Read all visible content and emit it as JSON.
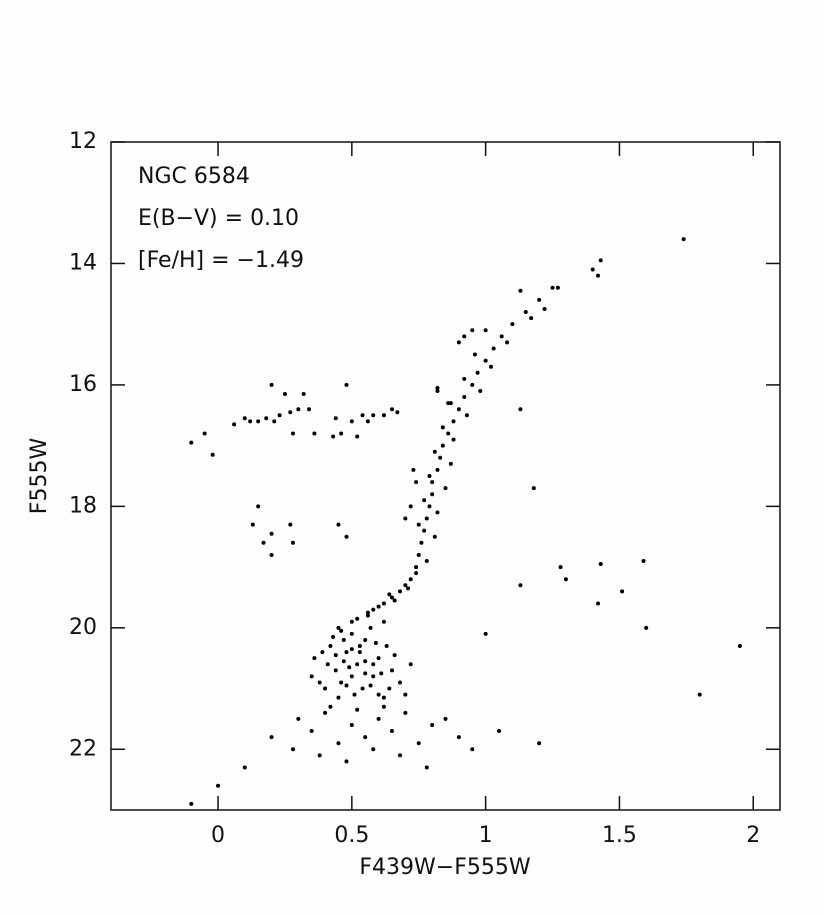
{
  "chart_data": {
    "type": "scatter",
    "x_label": "F439W−F555W",
    "y_label": "F555W",
    "annotations": [
      "NGC 6584",
      "E(B−V) = 0.10",
      "[Fe/H] = −1.49"
    ],
    "xlim": [
      -0.4,
      2.1
    ],
    "ylim": [
      12,
      23
    ],
    "y_inverted": true,
    "xticks": [
      0,
      0.5,
      1,
      1.5,
      2
    ],
    "yticks": [
      12,
      14,
      16,
      18,
      20,
      22
    ],
    "color": "#000000",
    "x": [
      -0.1,
      -0.05,
      -0.02,
      0.06,
      0.1,
      0.12,
      0.15,
      0.18,
      0.2,
      0.21,
      0.23,
      0.25,
      0.27,
      0.28,
      0.3,
      0.32,
      0.34,
      0.36,
      0.44,
      0.46,
      0.48,
      0.5,
      0.52,
      0.54,
      0.56,
      0.58,
      0.62,
      0.65,
      0.67,
      0.43,
      0.15,
      0.13,
      0.17,
      0.2,
      0.27,
      0.28,
      0.45,
      0.48,
      0.2,
      1.13,
      1.28,
      1.3,
      1.43,
      1.59,
      1.51,
      1.42,
      1.18,
      1.0,
      1.13,
      0.45,
      0.5,
      0.55,
      0.48,
      0.52,
      0.58,
      0.46,
      0.6,
      0.42,
      0.5,
      0.56,
      0.62,
      0.44,
      0.54,
      0.6,
      0.5,
      0.47,
      0.53,
      0.57,
      0.41,
      0.65,
      0.63,
      0.38,
      0.36,
      0.4,
      0.68,
      0.7,
      0.51,
      0.45,
      0.55,
      0.49,
      0.59,
      0.43,
      0.61,
      0.66,
      0.39,
      0.52,
      0.57,
      0.47,
      0.64,
      0.35,
      0.72,
      0.53,
      0.48,
      0.44,
      0.58,
      0.62,
      0.5,
      0.46,
      0.55,
      0.58,
      0.62,
      0.65,
      0.68,
      0.7,
      0.72,
      0.74,
      0.6,
      0.66,
      0.71,
      0.56,
      0.64,
      0.74,
      0.75,
      0.76,
      0.77,
      0.78,
      0.79,
      0.8,
      0.8,
      0.82,
      0.83,
      0.84,
      0.86,
      0.88,
      0.9,
      0.92,
      0.95,
      0.97,
      1.0,
      1.03,
      1.06,
      1.1,
      1.15,
      1.2,
      1.25,
      1.4,
      1.42,
      1.43,
      1.74,
      0.78,
      0.81,
      0.75,
      0.82,
      0.77,
      0.85,
      0.79,
      0.87,
      0.81,
      0.88,
      0.84,
      0.93,
      0.87,
      0.98,
      0.92,
      1.02,
      0.96,
      1.08,
      1.0,
      1.17,
      1.22,
      1.13,
      1.27,
      0.9,
      0.92,
      0.95,
      0.82,
      0.82,
      0.86,
      0.73,
      0.7,
      0.72,
      0.74,
      0.3,
      0.35,
      0.4,
      0.45,
      0.5,
      0.55,
      0.6,
      0.65,
      0.7,
      0.75,
      0.8,
      0.85,
      0.9,
      0.28,
      0.38,
      0.48,
      0.58,
      0.68,
      0.78,
      0.95,
      0.2,
      0.1,
      0.0,
      -0.1,
      1.05,
      1.2,
      1.6,
      1.8,
      1.95,
      0.42,
      0.62,
      0.52
    ],
    "values": [
      16.95,
      16.8,
      17.15,
      16.65,
      16.55,
      16.6,
      16.6,
      16.55,
      16.0,
      16.6,
      16.5,
      16.15,
      16.45,
      16.8,
      16.4,
      16.15,
      16.4,
      16.8,
      16.55,
      16.8,
      16.0,
      16.6,
      16.85,
      16.5,
      16.6,
      16.5,
      16.5,
      16.4,
      16.45,
      16.85,
      18.0,
      18.3,
      18.6,
      18.8,
      18.3,
      18.6,
      18.3,
      18.5,
      18.45,
      19.3,
      19.0,
      19.2,
      18.95,
      18.9,
      19.4,
      19.6,
      17.7,
      20.1,
      16.4,
      20.0,
      20.1,
      20.2,
      20.4,
      20.6,
      20.8,
      20.9,
      20.5,
      20.3,
      19.9,
      19.8,
      19.9,
      20.7,
      21.0,
      21.1,
      20.8,
      20.2,
      20.4,
      20.0,
      20.6,
      20.7,
      20.3,
      20.9,
      20.5,
      21.0,
      20.9,
      21.1,
      21.1,
      21.15,
      20.55,
      20.65,
      20.25,
      20.15,
      20.75,
      20.45,
      20.4,
      19.85,
      20.95,
      20.55,
      21.0,
      20.8,
      20.6,
      20.3,
      20.95,
      20.45,
      20.6,
      21.15,
      20.35,
      20.05,
      20.75,
      19.7,
      19.6,
      19.5,
      19.4,
      19.3,
      19.2,
      19.1,
      19.65,
      19.55,
      19.35,
      19.75,
      19.45,
      19.0,
      18.8,
      18.6,
      18.4,
      18.2,
      18.0,
      17.8,
      17.6,
      17.4,
      17.2,
      17.0,
      16.8,
      16.6,
      16.4,
      16.2,
      16.0,
      15.8,
      15.6,
      15.4,
      15.2,
      15.0,
      14.8,
      14.6,
      14.4,
      14.1,
      14.2,
      13.95,
      13.6,
      18.9,
      18.5,
      18.3,
      18.1,
      17.9,
      17.7,
      17.5,
      17.3,
      17.1,
      16.9,
      16.7,
      16.5,
      16.3,
      16.1,
      15.9,
      15.7,
      15.5,
      15.3,
      15.1,
      14.9,
      14.75,
      14.45,
      14.4,
      15.3,
      15.2,
      15.1,
      16.05,
      16.1,
      16.3,
      17.4,
      18.2,
      18.0,
      17.6,
      21.5,
      21.7,
      21.4,
      21.9,
      21.6,
      21.8,
      21.5,
      21.7,
      21.4,
      21.9,
      21.6,
      21.5,
      21.8,
      22.0,
      22.1,
      22.2,
      22.0,
      22.1,
      22.3,
      22.0,
      21.8,
      22.3,
      22.6,
      22.9,
      21.7,
      21.9,
      20.0,
      21.1,
      20.3,
      21.3,
      21.3,
      21.35
    ]
  }
}
